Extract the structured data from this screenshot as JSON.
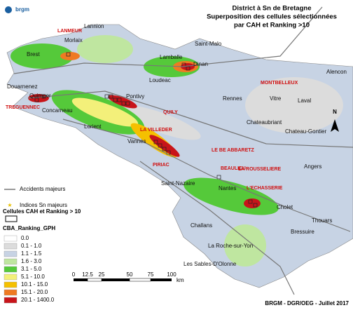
{
  "header": {
    "logo": "brgm",
    "title": [
      "District à Sn de Bretagne",
      "Superposition des cellules sélectionnées",
      "par CAH et Ranking >10"
    ]
  },
  "cities": [
    "Lannion",
    "Morlaix",
    "Brest",
    "Saint-Malo",
    "Lamballe",
    "Dinan",
    "Alencon",
    "Douarnenez",
    "Loudeac",
    "Pontivy",
    "Quimper",
    "Concarneau",
    "Rennes",
    "Vitre",
    "Laval",
    "Lorient",
    "Chateaubriant",
    "Chateau-Gontier",
    "Vannes",
    "Angers",
    "Saint-Nazaire",
    "Nantes",
    "Cholet",
    "Thouars",
    "Bressuire",
    "Challans",
    "La Roche-sur-Yon",
    "Les Sables-D'Olonne"
  ],
  "deposits": [
    "LANMEUR",
    "MONTBELLEUX",
    "TREGUENNEC",
    "QUILY",
    "LA VILLEDER",
    "LE BE ABBARETZ",
    "BEAULIEU",
    "LA ROUSSELIERE",
    "PIRIAC",
    "L'ECHASSERIE"
  ],
  "north": "N",
  "legend": {
    "faults": "Accidents majeurs",
    "indices": "Indices Sn majeurs",
    "cells": "Cellules CAH et Ranking > 10",
    "ranking_title": "CBA_Ranking_GPH",
    "classes": [
      {
        "label": "0.0",
        "color": "#ffffff"
      },
      {
        "label": "0.1 - 1.0",
        "color": "#dcdcdc"
      },
      {
        "label": "1.1 - 1.5",
        "color": "#c7d3e4"
      },
      {
        "label": "1.6 - 3.0",
        "color": "#bfe6a0"
      },
      {
        "label": "3.1 - 5.0",
        "color": "#55c93a"
      },
      {
        "label": "5.1 - 10.0",
        "color": "#f3f07a"
      },
      {
        "label": "10.1 - 15.0",
        "color": "#f5c000"
      },
      {
        "label": "15.1 - 20.0",
        "color": "#ef7a22"
      },
      {
        "label": "20.1 - 1400.0",
        "color": "#c8141a"
      }
    ]
  },
  "scale": {
    "labels": [
      "0",
      "12.5",
      "25",
      "50",
      "75",
      "100"
    ],
    "unit": "km"
  },
  "footer": "BRGM - DGR/OEG - Juillet 2017"
}
